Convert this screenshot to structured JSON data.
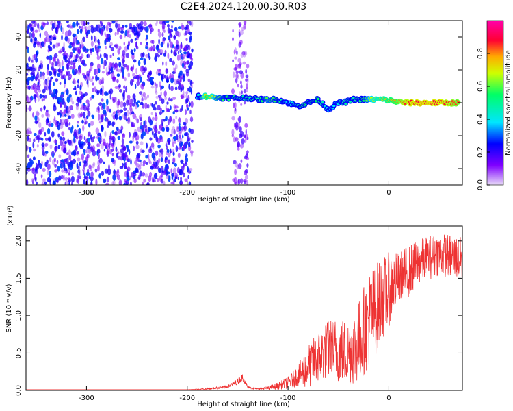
{
  "figure_title": "C2E4.2024.120.00.30.R03",
  "chart_data": [
    {
      "type": "heatmap",
      "xlabel": "Height of straight line (km)",
      "ylabel": "Frequency (Hz)",
      "xlim": [
        -360,
        73
      ],
      "ylim": [
        -50,
        50
      ],
      "xticks": [
        -300,
        -200,
        -100,
        0
      ],
      "yticks": [
        -40,
        -20,
        0,
        20,
        40
      ],
      "colorbar": {
        "label": "Normalized spectral amplitude",
        "range": [
          0.0,
          1.0
        ],
        "ticks": [
          "0.0",
          "0.2",
          "0.4",
          "0.6",
          "0.8"
        ],
        "colormap": [
          "#c8b4ee",
          "#7f00ff",
          "#0000ff",
          "#00e5ff",
          "#00ff66",
          "#cfff00",
          "#ffaa00",
          "#ff0033",
          "#ff00aa"
        ]
      },
      "features": [
        {
          "name": "noise",
          "x_range": [
            -360,
            -195
          ],
          "freq_range": [
            -50,
            50
          ],
          "amplitude_range": [
            0.05,
            0.3
          ]
        },
        {
          "name": "noise_strip",
          "x_range": [
            -155,
            -140
          ],
          "freq_range": [
            -50,
            50
          ],
          "amplitude_range": [
            0.05,
            0.2
          ]
        },
        {
          "name": "signal",
          "points": [
            [
              -190,
              4,
              0.35
            ],
            [
              -180,
              4,
              0.75
            ],
            [
              -170,
              3,
              0.55
            ],
            [
              -160,
              3,
              0.5
            ],
            [
              -150,
              3,
              0.45
            ],
            [
              -140,
              3,
              0.45
            ],
            [
              -130,
              2,
              0.45
            ],
            [
              -120,
              2,
              0.55
            ],
            [
              -110,
              2,
              0.5
            ],
            [
              -100,
              0,
              0.35
            ],
            [
              -90,
              -2,
              0.45
            ],
            [
              -80,
              0,
              0.5
            ],
            [
              -70,
              2,
              0.5
            ],
            [
              -60,
              -4,
              0.35
            ],
            [
              -50,
              0,
              0.4
            ],
            [
              -45,
              0,
              0.45
            ],
            [
              -35,
              2,
              0.45
            ],
            [
              -25,
              2,
              0.5
            ],
            [
              -15,
              2,
              0.65
            ],
            [
              -5,
              2,
              0.7
            ],
            [
              5,
              1,
              0.75
            ],
            [
              15,
              0,
              0.85
            ],
            [
              30,
              0,
              0.9
            ],
            [
              45,
              0,
              0.9
            ],
            [
              60,
              0,
              0.85
            ],
            [
              70,
              0,
              0.8
            ]
          ]
        }
      ]
    },
    {
      "type": "line",
      "xlabel": "Height of straight line (km)",
      "ylabel": "SNR (10 * v/v)",
      "y_multiplier": "(x10⁴)",
      "xlim": [
        -360,
        73
      ],
      "ylim": [
        0,
        2.2
      ],
      "xticks": [
        -300,
        -200,
        -100,
        0
      ],
      "yticks": [
        "0.0",
        "0.5",
        "1.0",
        "1.5",
        "2.0"
      ],
      "series": [
        {
          "color": "#ee3333",
          "x": [
            -360,
            -340,
            -320,
            -300,
            -280,
            -260,
            -240,
            -220,
            -200,
            -180,
            -160,
            -150,
            -145,
            -140,
            -130,
            -120,
            -110,
            -100,
            -90,
            -80,
            -70,
            -60,
            -50,
            -40,
            -30,
            -20,
            -10,
            0,
            10,
            20,
            30,
            40,
            50,
            60,
            73
          ],
          "y": [
            0.01,
            0.01,
            0.01,
            0.01,
            0.01,
            0.01,
            0.01,
            0.01,
            0.01,
            0.02,
            0.05,
            0.12,
            0.18,
            0.04,
            0.02,
            0.03,
            0.06,
            0.1,
            0.2,
            0.32,
            0.45,
            0.55,
            0.55,
            0.5,
            0.65,
            0.95,
            1.15,
            1.35,
            1.5,
            1.6,
            1.72,
            1.78,
            1.82,
            1.8,
            1.75
          ],
          "spread": [
            0,
            0,
            0,
            0,
            0,
            0,
            0,
            0,
            0,
            0.01,
            0.02,
            0.04,
            0.05,
            0.02,
            0.01,
            0.02,
            0.05,
            0.08,
            0.15,
            0.3,
            0.35,
            0.4,
            0.45,
            0.45,
            0.55,
            0.65,
            0.6,
            0.5,
            0.35,
            0.35,
            0.3,
            0.3,
            0.28,
            0.3,
            0.3
          ]
        }
      ]
    }
  ]
}
